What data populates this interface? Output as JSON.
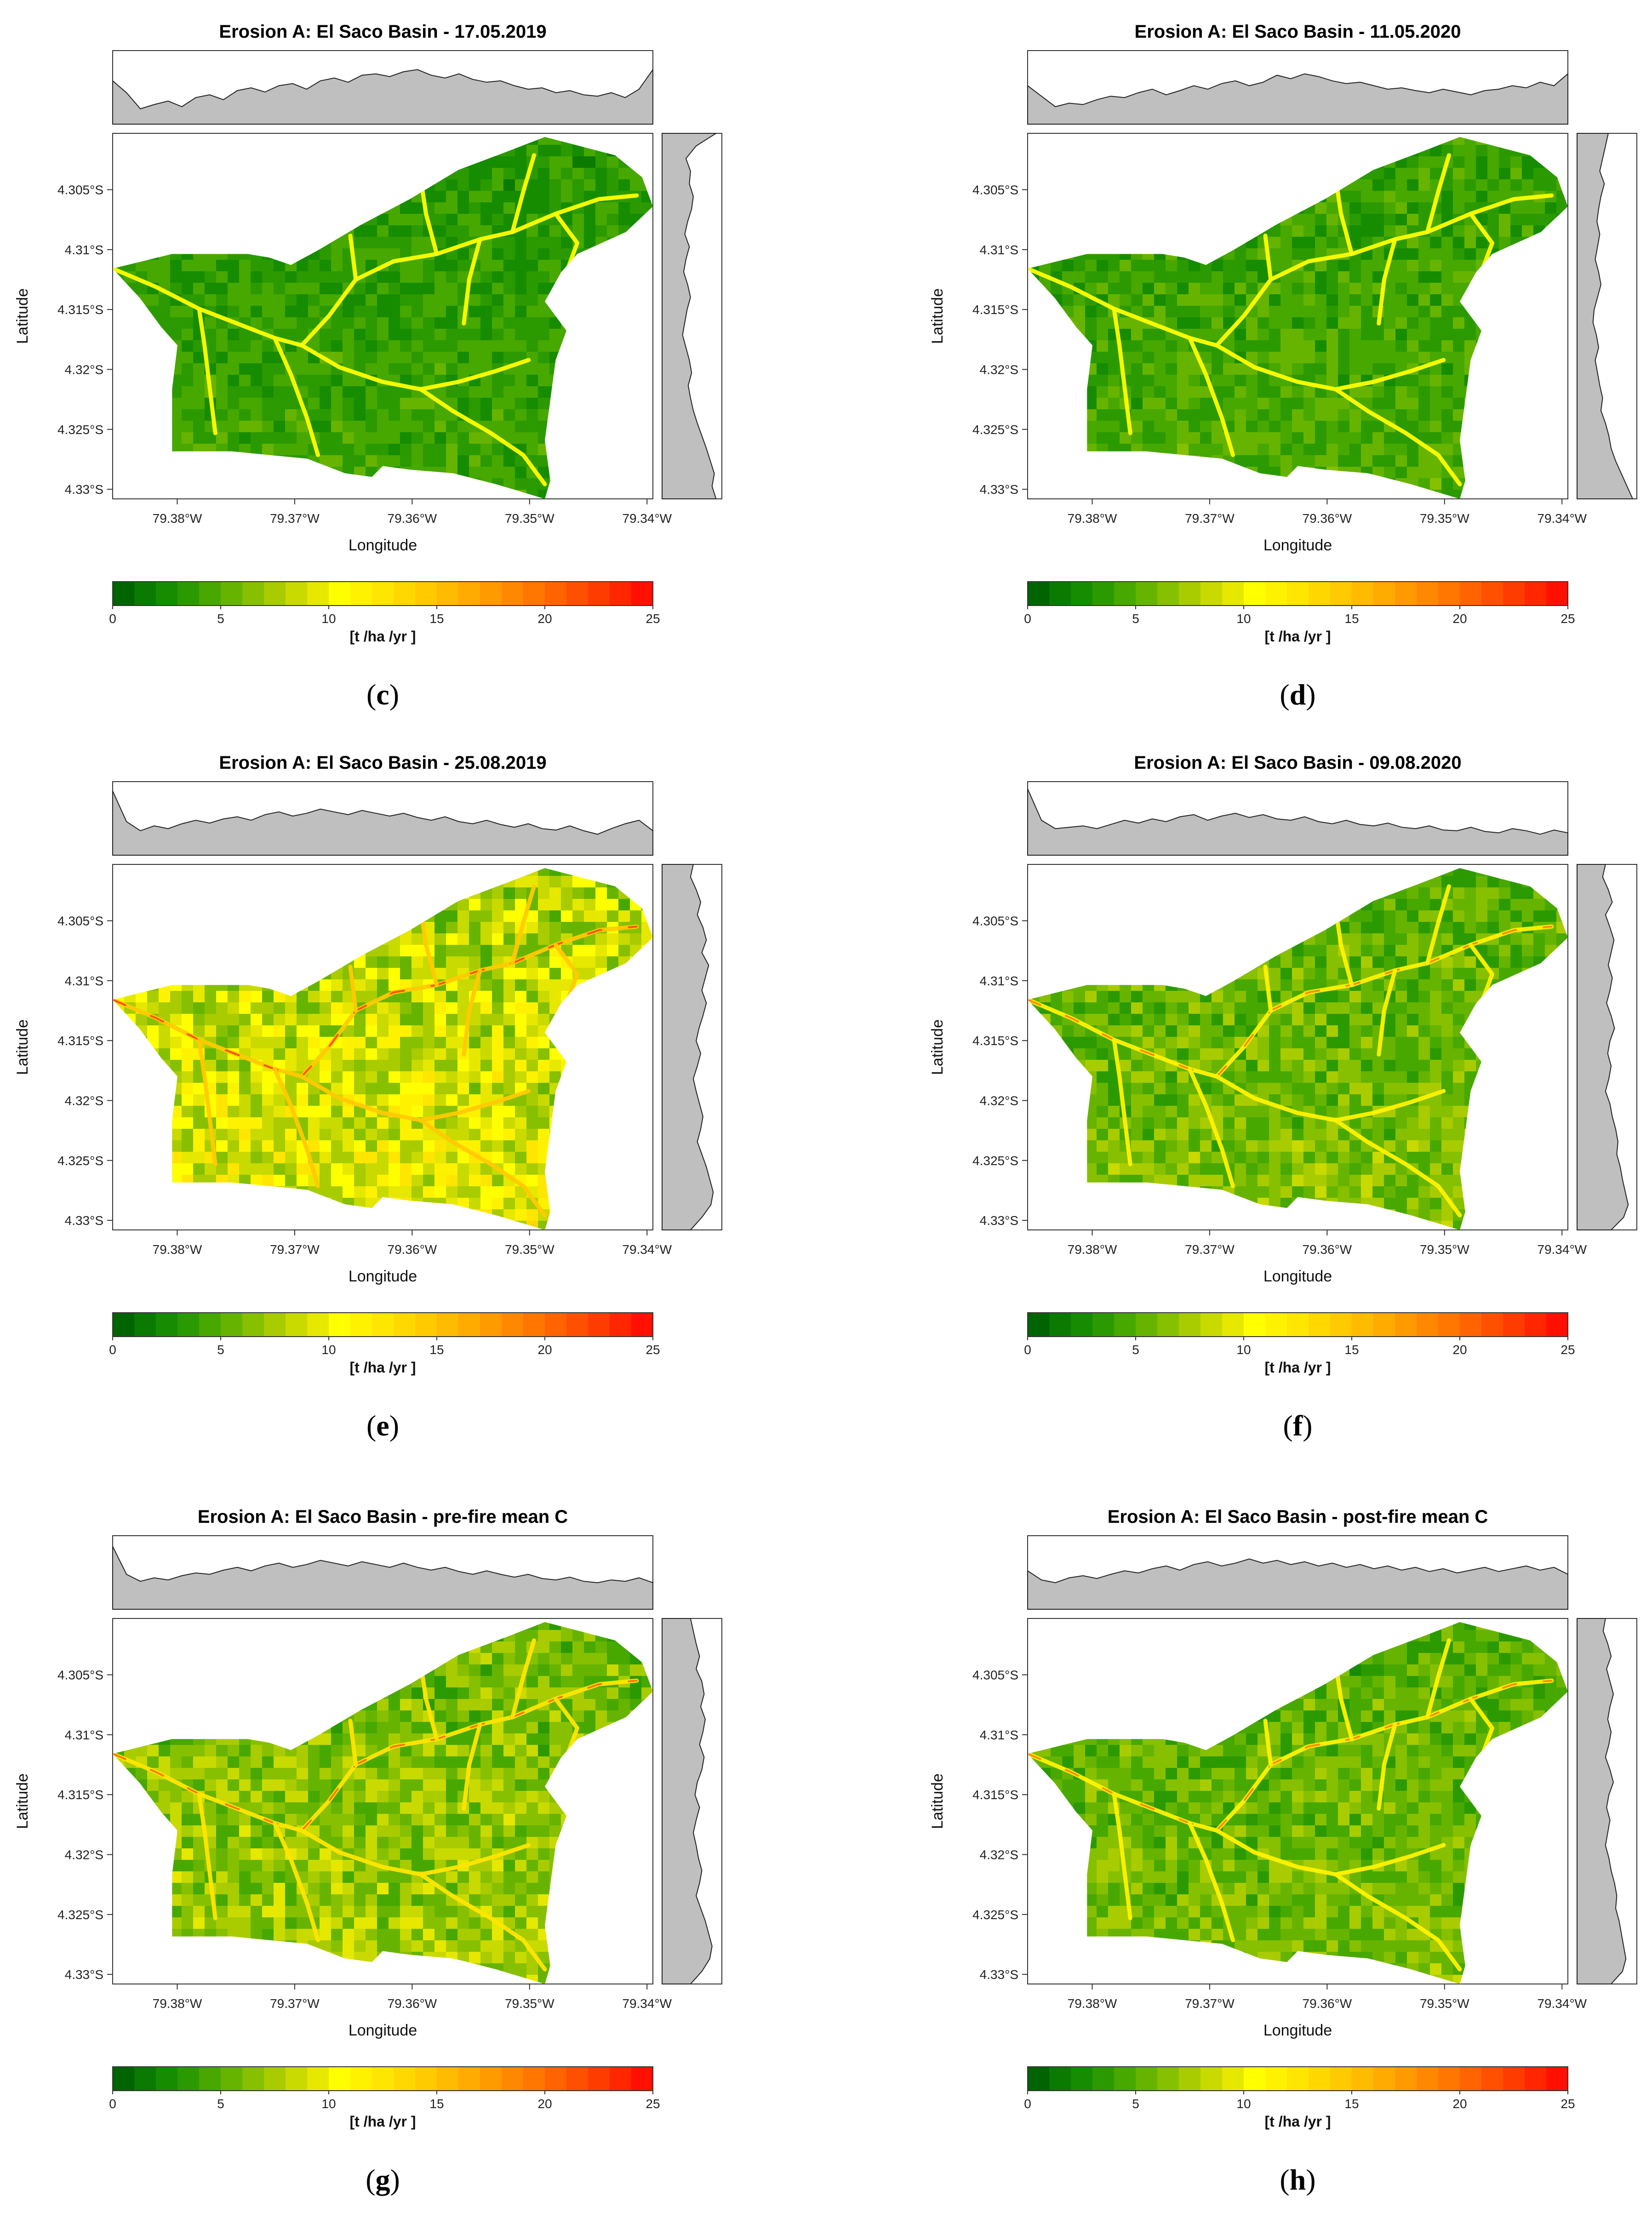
{
  "panels": [
    {
      "id": "c",
      "title": "Erosion A: El Saco Basin - 17.05.2019",
      "caption_letter": "c",
      "mean_level": 3.0,
      "hot_streams": false,
      "top_marginal": [
        0.62,
        0.45,
        0.22,
        0.28,
        0.33,
        0.25,
        0.38,
        0.42,
        0.35,
        0.48,
        0.52,
        0.46,
        0.55,
        0.58,
        0.5,
        0.62,
        0.66,
        0.6,
        0.7,
        0.72,
        0.68,
        0.75,
        0.78,
        0.7,
        0.66,
        0.72,
        0.64,
        0.6,
        0.62,
        0.55,
        0.5,
        0.52,
        0.45,
        0.48,
        0.42,
        0.4,
        0.45,
        0.38,
        0.5,
        0.78
      ],
      "right_marginal": [
        0.95,
        0.6,
        0.42,
        0.5,
        0.48,
        0.55,
        0.52,
        0.45,
        0.4,
        0.48,
        0.42,
        0.38,
        0.45,
        0.5,
        0.44,
        0.4,
        0.36,
        0.42,
        0.48,
        0.52,
        0.46,
        0.5,
        0.55,
        0.62,
        0.7,
        0.78,
        0.85,
        0.92,
        0.88,
        0.95
      ]
    },
    {
      "id": "d",
      "title": "Erosion A: El Saco Basin - 11.05.2020",
      "caption_letter": "d",
      "mean_level": 3.4,
      "hot_streams": false,
      "top_marginal": [
        0.55,
        0.4,
        0.25,
        0.3,
        0.28,
        0.35,
        0.4,
        0.38,
        0.45,
        0.5,
        0.42,
        0.48,
        0.55,
        0.5,
        0.58,
        0.62,
        0.55,
        0.6,
        0.7,
        0.65,
        0.72,
        0.68,
        0.62,
        0.58,
        0.6,
        0.55,
        0.5,
        0.52,
        0.48,
        0.45,
        0.5,
        0.46,
        0.42,
        0.48,
        0.5,
        0.55,
        0.52,
        0.6,
        0.55,
        0.72
      ],
      "right_marginal": [
        0.55,
        0.5,
        0.45,
        0.4,
        0.48,
        0.42,
        0.38,
        0.35,
        0.4,
        0.36,
        0.32,
        0.38,
        0.42,
        0.36,
        0.3,
        0.28,
        0.34,
        0.38,
        0.32,
        0.36,
        0.4,
        0.45,
        0.42,
        0.5,
        0.56,
        0.6,
        0.68,
        0.78,
        0.88,
        0.98
      ]
    },
    {
      "id": "e",
      "title": "Erosion A: El Saco Basin - 25.08.2019",
      "caption_letter": "e",
      "mean_level": 7.2,
      "hot_streams": true,
      "top_marginal": [
        0.92,
        0.48,
        0.35,
        0.42,
        0.38,
        0.45,
        0.5,
        0.46,
        0.52,
        0.55,
        0.5,
        0.58,
        0.62,
        0.56,
        0.6,
        0.66,
        0.62,
        0.58,
        0.64,
        0.6,
        0.56,
        0.6,
        0.54,
        0.5,
        0.55,
        0.48,
        0.45,
        0.5,
        0.44,
        0.4,
        0.45,
        0.38,
        0.36,
        0.42,
        0.35,
        0.3,
        0.38,
        0.45,
        0.5,
        0.35
      ],
      "right_marginal": [
        0.55,
        0.5,
        0.6,
        0.68,
        0.62,
        0.72,
        0.78,
        0.7,
        0.82,
        0.76,
        0.7,
        0.78,
        0.72,
        0.65,
        0.6,
        0.68,
        0.62,
        0.55,
        0.6,
        0.66,
        0.72,
        0.68,
        0.62,
        0.7,
        0.78,
        0.84,
        0.9,
        0.86,
        0.7,
        0.5
      ]
    },
    {
      "id": "f",
      "title": "Erosion A: El Saco Basin - 09.08.2020",
      "caption_letter": "f",
      "mean_level": 4.6,
      "hot_streams": true,
      "top_marginal": [
        0.95,
        0.5,
        0.38,
        0.4,
        0.42,
        0.38,
        0.44,
        0.5,
        0.46,
        0.52,
        0.48,
        0.55,
        0.58,
        0.5,
        0.56,
        0.6,
        0.54,
        0.58,
        0.52,
        0.5,
        0.55,
        0.48,
        0.45,
        0.5,
        0.44,
        0.42,
        0.46,
        0.4,
        0.38,
        0.42,
        0.36,
        0.35,
        0.4,
        0.34,
        0.32,
        0.38,
        0.35,
        0.3,
        0.36,
        0.32
      ],
      "right_marginal": [
        0.5,
        0.45,
        0.55,
        0.62,
        0.5,
        0.58,
        0.65,
        0.6,
        0.55,
        0.62,
        0.58,
        0.52,
        0.6,
        0.66,
        0.58,
        0.54,
        0.6,
        0.56,
        0.5,
        0.58,
        0.62,
        0.68,
        0.72,
        0.7,
        0.76,
        0.8,
        0.85,
        0.9,
        0.82,
        0.6
      ]
    },
    {
      "id": "g",
      "title": "Erosion A: El Saco Basin - pre-fire mean C",
      "caption_letter": "g",
      "mean_level": 5.4,
      "hot_streams": true,
      "top_marginal": [
        0.9,
        0.5,
        0.4,
        0.45,
        0.42,
        0.48,
        0.52,
        0.5,
        0.56,
        0.6,
        0.55,
        0.62,
        0.66,
        0.6,
        0.64,
        0.7,
        0.66,
        0.62,
        0.68,
        0.64,
        0.6,
        0.66,
        0.6,
        0.56,
        0.6,
        0.54,
        0.5,
        0.55,
        0.5,
        0.46,
        0.5,
        0.44,
        0.42,
        0.46,
        0.4,
        0.38,
        0.42,
        0.4,
        0.45,
        0.38
      ],
      "right_marginal": [
        0.5,
        0.55,
        0.6,
        0.66,
        0.6,
        0.7,
        0.74,
        0.68,
        0.76,
        0.72,
        0.66,
        0.74,
        0.7,
        0.62,
        0.58,
        0.66,
        0.6,
        0.55,
        0.6,
        0.64,
        0.7,
        0.66,
        0.6,
        0.68,
        0.76,
        0.82,
        0.88,
        0.84,
        0.7,
        0.5
      ]
    },
    {
      "id": "h",
      "title": "Erosion A: El Saco Basin - post-fire mean C",
      "caption_letter": "h",
      "mean_level": 4.5,
      "hot_streams": true,
      "top_marginal": [
        0.55,
        0.42,
        0.38,
        0.45,
        0.48,
        0.44,
        0.5,
        0.55,
        0.52,
        0.58,
        0.62,
        0.56,
        0.64,
        0.68,
        0.62,
        0.66,
        0.72,
        0.66,
        0.7,
        0.64,
        0.68,
        0.62,
        0.66,
        0.6,
        0.64,
        0.58,
        0.62,
        0.56,
        0.6,
        0.54,
        0.58,
        0.52,
        0.56,
        0.6,
        0.54,
        0.58,
        0.62,
        0.56,
        0.6,
        0.5
      ],
      "right_marginal": [
        0.5,
        0.46,
        0.54,
        0.6,
        0.52,
        0.58,
        0.64,
        0.58,
        0.54,
        0.6,
        0.56,
        0.5,
        0.58,
        0.64,
        0.56,
        0.52,
        0.58,
        0.54,
        0.5,
        0.56,
        0.6,
        0.66,
        0.7,
        0.68,
        0.74,
        0.78,
        0.82,
        0.86,
        0.8,
        0.6
      ]
    }
  ],
  "axes": {
    "x_label": "Longitude",
    "y_label": "Latitude",
    "x_ticks": [
      "79.38°W",
      "79.37°W",
      "79.36°W",
      "79.35°W",
      "79.34°W"
    ],
    "x_tick_values": [
      -79.38,
      -79.37,
      -79.36,
      -79.35,
      -79.34
    ],
    "x_range": [
      -79.3855,
      -79.3395
    ],
    "y_ticks": [
      "4.305°S",
      "4.31°S",
      "4.315°S",
      "4.32°S",
      "4.325°S",
      "4.33°S"
    ],
    "y_tick_values": [
      -4.305,
      -4.31,
      -4.315,
      -4.32,
      -4.325,
      -4.33
    ],
    "y_range": [
      -4.3308,
      -4.3003
    ]
  },
  "colorbar": {
    "unit_label": "[t /ha /yr ]",
    "min": 0,
    "max": 25,
    "tick_labels": [
      "0",
      "5",
      "10",
      "15",
      "20",
      "25"
    ],
    "tick_values": [
      0,
      5,
      10,
      15,
      20,
      25
    ],
    "colors": [
      "#006400",
      "#0a7a00",
      "#168c00",
      "#2b9a00",
      "#47a800",
      "#66b400",
      "#86c000",
      "#a8cc00",
      "#c8da00",
      "#e6e800",
      "#ffff00",
      "#fff200",
      "#ffe600",
      "#ffd800",
      "#ffca00",
      "#ffbb00",
      "#ffab00",
      "#ff9a00",
      "#ff8800",
      "#ff7600",
      "#ff6400",
      "#ff5000",
      "#ff3c00",
      "#ff2600",
      "#ff1000"
    ]
  }
}
